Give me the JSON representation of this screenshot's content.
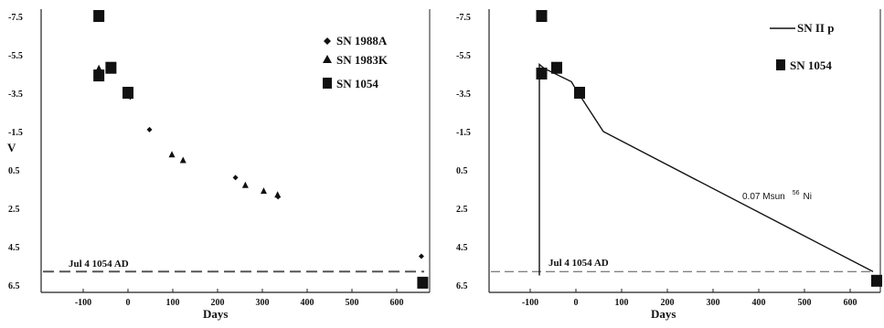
{
  "colors": {
    "marker": "#111111",
    "axis": "#222222",
    "dash": "#555555"
  },
  "chart_data": [
    {
      "type": "scatter",
      "xlabel": "Days",
      "ylabel": "V",
      "xlim": [
        -120,
        660
      ],
      "ylim": [
        -7.5,
        6.5
      ],
      "y_inverted": true,
      "xticks": [
        "-100",
        "0",
        "100",
        "200",
        "300",
        "400",
        "500",
        "600"
      ],
      "yticks": [
        "-7.5",
        "-5.5",
        "-3.5",
        "-1.5",
        "0.5",
        "2.5",
        "4.5",
        "6.5"
      ],
      "legend": [
        "SN 1988A",
        "SN 1983K",
        "SN 1054"
      ],
      "legend_position": "top-right",
      "annotation": "Jul 4 1054 AD",
      "series": [
        {
          "name": "SN 1988A",
          "marker": "diamond",
          "x": [
            5,
            48,
            240,
            335,
            655
          ],
          "y": [
            -3.3,
            -1.6,
            0.9,
            1.9,
            5.0
          ]
        },
        {
          "name": "SN 1983K",
          "marker": "triangle",
          "x": [
            -65,
            98,
            123,
            262,
            303,
            334
          ],
          "y": [
            -4.8,
            -0.3,
            0.0,
            1.3,
            1.6,
            1.8
          ]
        },
        {
          "name": "SN 1054",
          "marker": "square",
          "x": [
            -65,
            -65,
            -38,
            0,
            658
          ],
          "y": [
            -7.5,
            -4.4,
            -4.8,
            -3.5,
            6.4
          ]
        }
      ],
      "hline": {
        "y": 5.8,
        "style": "dashed"
      }
    },
    {
      "type": "line",
      "xlabel": "Days",
      "ylabel": "",
      "xlim": [
        -120,
        660
      ],
      "ylim": [
        -7.5,
        6.5
      ],
      "y_inverted": true,
      "xticks": [
        "-100",
        "0",
        "100",
        "200",
        "300",
        "400",
        "500",
        "600"
      ],
      "yticks": [
        "-7.5",
        "-5.5",
        "-3.5",
        "-1.5",
        "0.5",
        "2.5",
        "4.5",
        "6.5"
      ],
      "legend": [
        "SN II p",
        "SN 1054"
      ],
      "legend_position": "top-right",
      "annotation": "Jul 4 1054 AD",
      "line_label": "0.07 Msun",
      "line_label_sup": "56",
      "line_label_elem": "Ni",
      "series": [
        {
          "name": "SN II p",
          "x": [
            -80,
            -80,
            -70,
            -10,
            0,
            60,
            650
          ],
          "y": [
            6.0,
            -5.0,
            -4.8,
            -4.1,
            -3.7,
            -1.5,
            5.8
          ]
        },
        {
          "name": "SN 1054",
          "marker": "square",
          "x": [
            -75,
            -75,
            -42,
            8,
            658
          ],
          "y": [
            -7.5,
            -4.5,
            -4.8,
            -3.5,
            6.3
          ]
        }
      ],
      "hline": {
        "y": 5.8,
        "style": "dashed"
      }
    }
  ]
}
